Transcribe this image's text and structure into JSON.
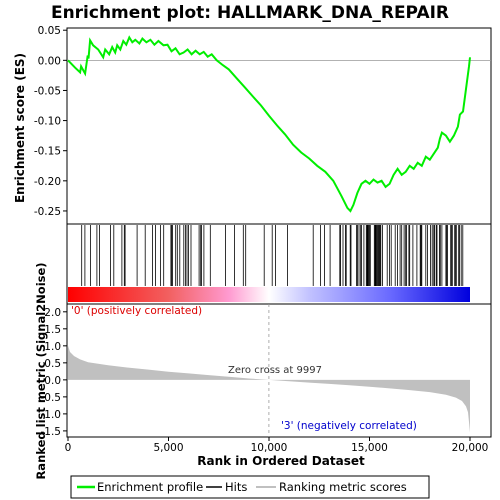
{
  "chart_data": {
    "type": "line",
    "title": "Enrichment plot: HALLMARK_DNA_REPAIR",
    "xlabel": "Rank in Ordered Dataset",
    "n_genes": 20000,
    "top_panel": {
      "ylabel": "Enrichment score (ES)",
      "ylim": [
        -0.27,
        0.052
      ],
      "yticks": [
        0.05,
        0.0,
        -0.05,
        -0.1,
        -0.15,
        -0.2,
        -0.25
      ],
      "ytick_labels": [
        "0.05",
        "0.00",
        "-0.05",
        "-0.10",
        "-0.15",
        "-0.20",
        "-0.25"
      ],
      "line_color": "#00ee00",
      "es_profile": [
        [
          0,
          0.0
        ],
        [
          350,
          -0.012
        ],
        [
          600,
          -0.02
        ],
        [
          650,
          -0.01
        ],
        [
          850,
          -0.022
        ],
        [
          980,
          0.008
        ],
        [
          1020,
          0.003
        ],
        [
          1100,
          0.033
        ],
        [
          1250,
          0.025
        ],
        [
          1500,
          0.018
        ],
        [
          1750,
          0.005
        ],
        [
          1850,
          0.018
        ],
        [
          2050,
          0.01
        ],
        [
          2200,
          0.022
        ],
        [
          2350,
          0.013
        ],
        [
          2450,
          0.025
        ],
        [
          2600,
          0.018
        ],
        [
          2750,
          0.032
        ],
        [
          2900,
          0.026
        ],
        [
          3050,
          0.038
        ],
        [
          3200,
          0.03
        ],
        [
          3350,
          0.034
        ],
        [
          3550,
          0.028
        ],
        [
          3700,
          0.036
        ],
        [
          3900,
          0.03
        ],
        [
          4100,
          0.034
        ],
        [
          4300,
          0.026
        ],
        [
          4500,
          0.032
        ],
        [
          4750,
          0.025
        ],
        [
          4950,
          0.026
        ],
        [
          5150,
          0.015
        ],
        [
          5350,
          0.02
        ],
        [
          5550,
          0.01
        ],
        [
          5750,
          0.013
        ],
        [
          5950,
          0.018
        ],
        [
          6150,
          0.01
        ],
        [
          6350,
          0.016
        ],
        [
          6550,
          0.01
        ],
        [
          6750,
          0.014
        ],
        [
          6950,
          0.006
        ],
        [
          7150,
          0.01
        ],
        [
          7400,
          0.0
        ],
        [
          7700,
          -0.008
        ],
        [
          8000,
          -0.015
        ],
        [
          8400,
          -0.03
        ],
        [
          8800,
          -0.045
        ],
        [
          9200,
          -0.06
        ],
        [
          9600,
          -0.075
        ],
        [
          10000,
          -0.092
        ],
        [
          10400,
          -0.108
        ],
        [
          10800,
          -0.123
        ],
        [
          11200,
          -0.14
        ],
        [
          11600,
          -0.153
        ],
        [
          12000,
          -0.163
        ],
        [
          12400,
          -0.175
        ],
        [
          12800,
          -0.185
        ],
        [
          13200,
          -0.2
        ],
        [
          13600,
          -0.225
        ],
        [
          13900,
          -0.245
        ],
        [
          14050,
          -0.25
        ],
        [
          14200,
          -0.24
        ],
        [
          14400,
          -0.22
        ],
        [
          14600,
          -0.205
        ],
        [
          14800,
          -0.2
        ],
        [
          15000,
          -0.205
        ],
        [
          15200,
          -0.198
        ],
        [
          15400,
          -0.203
        ],
        [
          15600,
          -0.2
        ],
        [
          15800,
          -0.21
        ],
        [
          16000,
          -0.205
        ],
        [
          16200,
          -0.19
        ],
        [
          16400,
          -0.18
        ],
        [
          16600,
          -0.19
        ],
        [
          16800,
          -0.185
        ],
        [
          17000,
          -0.175
        ],
        [
          17200,
          -0.18
        ],
        [
          17400,
          -0.17
        ],
        [
          17600,
          -0.175
        ],
        [
          17800,
          -0.16
        ],
        [
          18000,
          -0.165
        ],
        [
          18200,
          -0.155
        ],
        [
          18400,
          -0.145
        ],
        [
          18500,
          -0.13
        ],
        [
          18600,
          -0.12
        ],
        [
          18800,
          -0.125
        ],
        [
          19000,
          -0.135
        ],
        [
          19200,
          -0.125
        ],
        [
          19400,
          -0.11
        ],
        [
          19500,
          -0.09
        ],
        [
          19650,
          -0.085
        ],
        [
          19750,
          -0.06
        ],
        [
          19850,
          -0.035
        ],
        [
          19950,
          -0.01
        ],
        [
          20000,
          0.005
        ]
      ]
    },
    "hits_panel": {
      "bar_colors": [
        "#ff0000",
        "#ffb3d9",
        "#ffffff",
        "#b3b3ff",
        "#0000ff"
      ]
    },
    "bottom_panel": {
      "ylabel": "Ranked list metric (Signal2Noise)",
      "ylim": [
        -1.65,
        2.2
      ],
      "yticks": [
        2.0,
        1.5,
        1.0,
        0.5,
        0.0,
        -0.5,
        -1.0,
        -1.5
      ],
      "ytick_labels": [
        "2.0",
        "1.5",
        "1.0",
        "0.5",
        "0.0",
        "-0.5",
        "-1.0",
        "-1.5"
      ],
      "fill_color": "#c0c0c0",
      "metric_curve": [
        [
          0,
          1.0
        ],
        [
          100,
          0.82
        ],
        [
          300,
          0.7
        ],
        [
          600,
          0.6
        ],
        [
          1000,
          0.52
        ],
        [
          2000,
          0.43
        ],
        [
          3000,
          0.36
        ],
        [
          4000,
          0.3
        ],
        [
          5000,
          0.24
        ],
        [
          6000,
          0.19
        ],
        [
          7000,
          0.14
        ],
        [
          8000,
          0.09
        ],
        [
          9000,
          0.04
        ],
        [
          9997,
          0.0
        ],
        [
          11000,
          -0.04
        ],
        [
          12000,
          -0.08
        ],
        [
          13000,
          -0.12
        ],
        [
          14000,
          -0.16
        ],
        [
          15000,
          -0.2
        ],
        [
          16000,
          -0.25
        ],
        [
          17000,
          -0.3
        ],
        [
          18000,
          -0.36
        ],
        [
          18800,
          -0.44
        ],
        [
          19300,
          -0.52
        ],
        [
          19600,
          -0.62
        ],
        [
          19800,
          -0.78
        ],
        [
          19900,
          -0.95
        ],
        [
          19960,
          -1.3
        ],
        [
          20000,
          -1.55
        ]
      ],
      "zero_cross_rank": 9997,
      "zero_cross_label": "Zero cross at 9997",
      "positive_label": "'0' (positively correlated)",
      "negative_label": "'3' (negatively correlated)"
    },
    "xticks": [
      0,
      5000,
      10000,
      15000,
      20000
    ],
    "xtick_labels": [
      "0",
      "5,000",
      "10,000",
      "15,000",
      "20,000"
    ],
    "legend": {
      "placement": "bottom",
      "entries": [
        {
          "label": "Enrichment profile",
          "color": "#00ee00"
        },
        {
          "label": "Hits",
          "color": "#000000"
        },
        {
          "label": "Ranking metric scores",
          "color": "#c0c0c0"
        }
      ]
    }
  }
}
